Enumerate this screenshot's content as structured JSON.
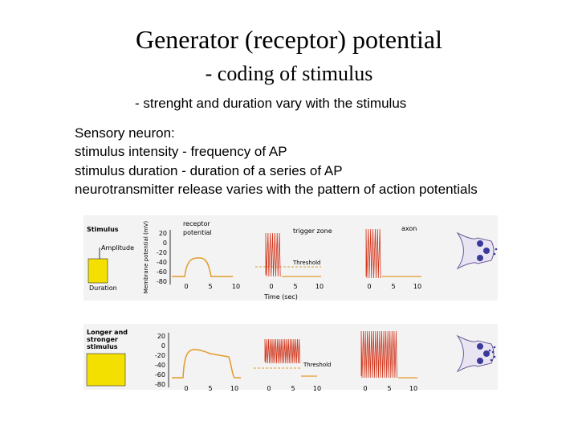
{
  "header": {
    "title": "Generator (receptor) potential",
    "subtitle": "- coding of stimulus"
  },
  "note": "- strenght and duration vary with the stimulus",
  "body": [
    "Sensory neuron:",
    "stimulus intensity  - frequency of AP",
    "stimulus duration  - duration of a series of AP",
    "neurotransmitter release varies with the pattern of action potentials"
  ],
  "figure": {
    "callouts": {
      "receptor": [
        "receptor",
        "potential"
      ],
      "trigger": "trigger zone",
      "axon": "axon"
    },
    "top": {
      "stimulus": "Stimulus",
      "amplitude": "Amplitude",
      "duration": "Duration",
      "y_axis_label": "Membrane potential (mV)",
      "yticks": [
        "20",
        "0",
        "-20",
        "-40",
        "-60",
        "-80"
      ],
      "xticks": [
        "0",
        "5",
        "10"
      ],
      "x_axis_label": "Time (sec)",
      "threshold": "Threshold"
    },
    "bottom": {
      "stimulus": [
        "Longer and",
        "stronger",
        "stimulus"
      ],
      "yticks": [
        "20",
        "0",
        "-20",
        "-40",
        "-60",
        "-80"
      ],
      "xticks": [
        "0",
        "5",
        "10"
      ],
      "threshold": "Threshold"
    }
  }
}
